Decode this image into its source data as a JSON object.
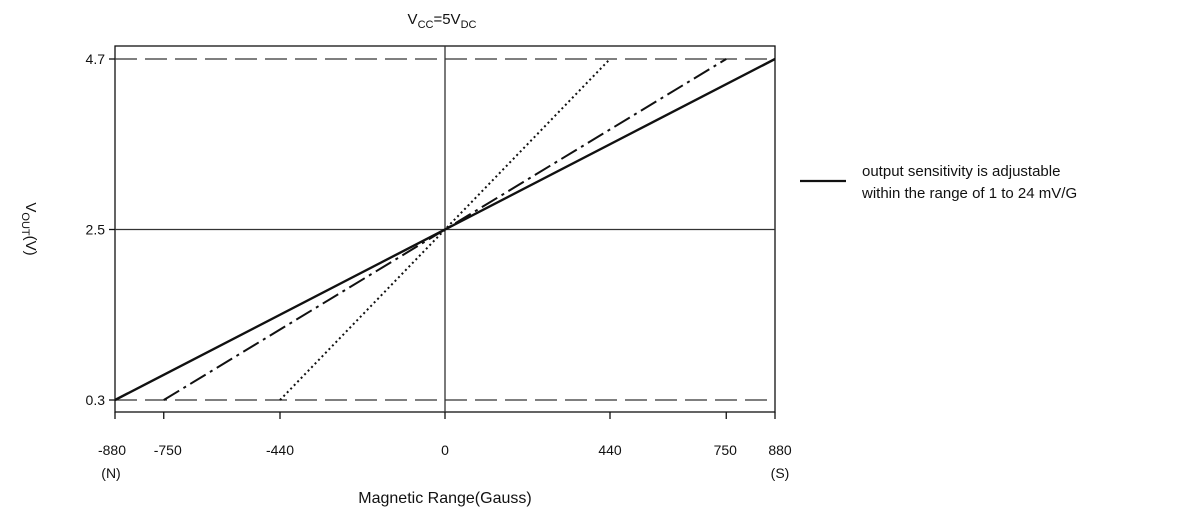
{
  "chart_data": {
    "type": "line",
    "title": {
      "main": "V",
      "main_sub": "CC",
      "mid": "=5V",
      "tail_sub": "DC"
    },
    "ylabel": {
      "main": "V",
      "sub": "OUT",
      "unit": "(V)"
    },
    "xlabel": "Magnetic Range(Gauss)",
    "xlim": [
      -880,
      880
    ],
    "ylim": [
      0.3,
      4.7
    ],
    "x_ticks": [
      "-880",
      "-750",
      "-440",
      "0",
      "440",
      "750",
      "880"
    ],
    "x_tick_values": [
      -880,
      -750,
      -440,
      0,
      440,
      750,
      880
    ],
    "x_tick_sublabels": [
      {
        "x": -880,
        "text": "(N)"
      },
      {
        "x": 880,
        "text": "(S)"
      }
    ],
    "y_ticks": [
      "0.3",
      "2.5",
      "4.7"
    ],
    "y_tick_values": [
      0.3,
      2.5,
      4.7
    ],
    "reference_lines": [
      {
        "axis": "y",
        "value": 4.7,
        "style": "dashed"
      },
      {
        "axis": "y",
        "value": 0.3,
        "style": "dashed"
      },
      {
        "axis": "y",
        "value": 2.5,
        "style": "solid"
      },
      {
        "axis": "x",
        "value": 0,
        "style": "solid"
      }
    ],
    "series": [
      {
        "style": "solid",
        "x": [
          -880,
          880
        ],
        "y": [
          0.3,
          4.7
        ]
      },
      {
        "style": "dashdot",
        "x": [
          -750,
          750
        ],
        "y": [
          0.3,
          4.7
        ]
      },
      {
        "style": "dotted",
        "x": [
          -440,
          440
        ],
        "y": [
          0.3,
          4.7
        ]
      }
    ],
    "legend": {
      "placement": "right",
      "line1": "output sensitivity is adjustable",
      "line2": "within the range of 1 to 24 mV/G"
    }
  }
}
